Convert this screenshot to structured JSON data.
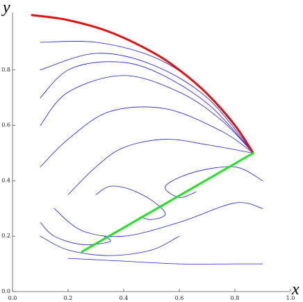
{
  "chart_data": {
    "type": "line",
    "x_label": "x",
    "y_label": "y",
    "xlim": [
      0,
      1
    ],
    "ylim": [
      0,
      1
    ],
    "xticks": [
      {
        "value": 0,
        "label": "0.0"
      },
      0.2,
      0.4,
      0.6,
      0.8,
      {
        "value": 1,
        "label": "1.0"
      }
    ],
    "yticks": [
      {
        "value": 0,
        "label": "0.0"
      },
      0.2,
      0.4,
      0.6,
      0.8
    ],
    "series": [
      {
        "color": "#1a1adc",
        "width": 0.8,
        "x": [
          0.1,
          0.3,
          0.5,
          0.65,
          0.78,
          0.866
        ],
        "y": [
          0.9,
          0.9,
          0.85,
          0.76,
          0.63,
          0.5
        ]
      },
      {
        "color": "#1a1adc",
        "width": 0.8,
        "x": [
          0.1,
          0.3,
          0.5,
          0.7,
          0.866
        ],
        "y": [
          0.8,
          0.86,
          0.82,
          0.7,
          0.5
        ]
      },
      {
        "color": "#1a1adc",
        "width": 0.8,
        "x": [
          0.1,
          0.2,
          0.35,
          0.5,
          0.7,
          0.866
        ],
        "y": [
          0.7,
          0.8,
          0.83,
          0.8,
          0.68,
          0.5
        ]
      },
      {
        "color": "#1a1adc",
        "width": 0.8,
        "x": [
          0.1,
          0.2,
          0.4,
          0.6,
          0.75,
          0.866
        ],
        "y": [
          0.6,
          0.72,
          0.78,
          0.72,
          0.62,
          0.5
        ]
      },
      {
        "color": "#1a1adc",
        "width": 0.8,
        "x": [
          0.1,
          0.2,
          0.35,
          0.55,
          0.75,
          0.866
        ],
        "y": [
          0.45,
          0.55,
          0.65,
          0.66,
          0.58,
          0.5
        ]
      },
      {
        "color": "#1a1adc",
        "width": 0.8,
        "x": [
          0.2,
          0.3,
          0.4,
          0.55,
          0.7,
          0.866
        ],
        "y": [
          0.35,
          0.45,
          0.52,
          0.55,
          0.53,
          0.5
        ]
      },
      {
        "color": "#1a1adc",
        "width": 0.8,
        "x": [
          0.15,
          0.25,
          0.4,
          0.6,
          0.8,
          0.9
        ],
        "y": [
          0.3,
          0.22,
          0.2,
          0.25,
          0.32,
          0.3
        ]
      },
      {
        "color": "#1a1adc",
        "width": 0.8,
        "x": [
          0.2,
          0.4,
          0.6,
          0.8,
          0.9
        ],
        "y": [
          0.12,
          0.11,
          0.1,
          0.1,
          0.1
        ]
      },
      {
        "color": "#1a1adc",
        "width": 0.8,
        "x": [
          0.3,
          0.35,
          0.42,
          0.5,
          0.55,
          0.5,
          0.46
        ],
        "y": [
          0.35,
          0.38,
          0.37,
          0.33,
          0.28,
          0.26,
          0.27
        ]
      },
      {
        "color": "#1a1adc",
        "width": 0.8,
        "x": [
          0.9,
          0.8,
          0.65,
          0.55,
          0.6,
          0.66
        ],
        "y": [
          0.4,
          0.45,
          0.43,
          0.38,
          0.34,
          0.36
        ]
      },
      {
        "color": "#1a1adc",
        "width": 0.8,
        "x": [
          0.1,
          0.15,
          0.25,
          0.35,
          0.33
        ],
        "y": [
          0.25,
          0.2,
          0.17,
          0.18,
          0.2
        ]
      },
      {
        "color": "#1a1adc",
        "width": 0.8,
        "x": [
          0.1,
          0.2,
          0.35,
          0.5,
          0.6
        ],
        "y": [
          0.2,
          0.15,
          0.13,
          0.15,
          0.2
        ]
      },
      {
        "color": "#e01010",
        "width": 3,
        "x": [
          0.07,
          0.2,
          0.35,
          0.5,
          0.6,
          0.7,
          0.8,
          0.866
        ],
        "y": [
          0.998,
          0.98,
          0.937,
          0.866,
          0.8,
          0.714,
          0.6,
          0.5
        ]
      },
      {
        "color": "#22e022",
        "width": 3,
        "x": [
          0.25,
          0.866
        ],
        "y": [
          0.144,
          0.5
        ]
      }
    ]
  }
}
